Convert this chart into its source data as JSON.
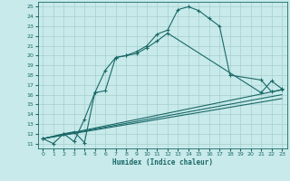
{
  "title": "",
  "xlabel": "Humidex (Indice chaleur)",
  "bg_color": "#c8eaea",
  "grid_color": "#a8cece",
  "line_color": "#1a6868",
  "xlim": [
    -0.5,
    23.5
  ],
  "ylim": [
    10.5,
    25.5
  ],
  "curve1_x": [
    0,
    1,
    2,
    3,
    4,
    5,
    6,
    7,
    8,
    9,
    10,
    11,
    12,
    13,
    14,
    15,
    16,
    17,
    18,
    21,
    22,
    23
  ],
  "curve1_y": [
    11.5,
    11.0,
    12.0,
    11.2,
    13.5,
    16.2,
    18.5,
    19.8,
    20.0,
    20.4,
    21.0,
    22.2,
    22.6,
    24.7,
    25.0,
    24.6,
    23.8,
    23.0,
    18.0,
    17.5,
    16.3,
    16.5
  ],
  "curve2_x": [
    0,
    2,
    3,
    4,
    5,
    6,
    7,
    8,
    9,
    10,
    11,
    12,
    21,
    22,
    23
  ],
  "curve2_y": [
    11.5,
    12.0,
    12.2,
    11.1,
    16.2,
    16.4,
    19.8,
    20.0,
    20.2,
    20.8,
    21.5,
    22.3,
    16.2,
    17.4,
    16.6
  ],
  "line1_x": [
    0,
    23
  ],
  "line1_y": [
    11.5,
    16.5
  ],
  "line2_x": [
    0,
    23
  ],
  "line2_y": [
    11.5,
    15.6
  ],
  "line3_x": [
    0,
    23
  ],
  "line3_y": [
    11.5,
    16.0
  ]
}
